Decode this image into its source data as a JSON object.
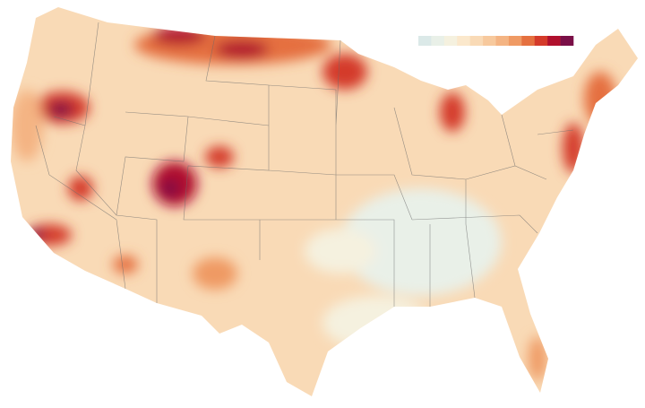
{
  "legend": {
    "colors": [
      "#dbe9e8",
      "#e9f0e8",
      "#f5f1df",
      "#fbe8cc",
      "#f9dab6",
      "#f7c99d",
      "#f4b483",
      "#ef9a64",
      "#e5703f",
      "#d43a2a",
      "#b0102d",
      "#7a0f47"
    ]
  }
}
